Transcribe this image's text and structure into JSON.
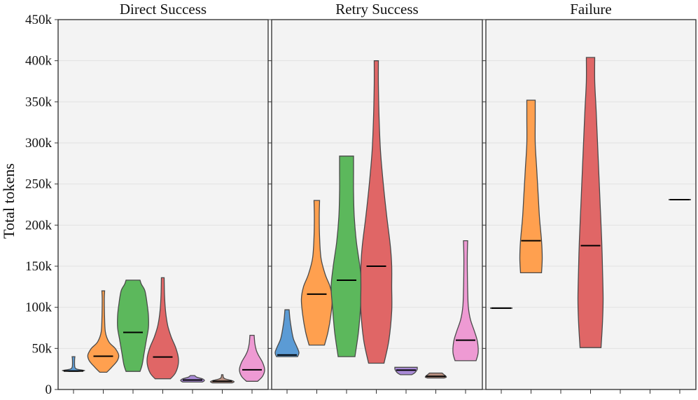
{
  "chart_data": {
    "type": "violin",
    "ylabel": "Total tokens",
    "ylim": [
      0,
      450000
    ],
    "yticks": [
      {
        "value": 0,
        "label": "0"
      },
      {
        "value": 50000,
        "label": "50k"
      },
      {
        "value": 100000,
        "label": "100k"
      },
      {
        "value": 150000,
        "label": "150k"
      },
      {
        "value": 200000,
        "label": "200k"
      },
      {
        "value": 250000,
        "label": "250k"
      },
      {
        "value": 300000,
        "label": "300k"
      },
      {
        "value": 350000,
        "label": "350k"
      },
      {
        "value": 400000,
        "label": "400k"
      },
      {
        "value": 450000,
        "label": "450k"
      }
    ],
    "grid": true,
    "series_colors": [
      "#5b9bd5",
      "#ffa04f",
      "#5cb85c",
      "#e06666",
      "#a98ad6",
      "#b88f80",
      "#ee9ad3"
    ],
    "panels": [
      {
        "title": "Direct Success",
        "violins": [
          {
            "series": 0,
            "min": 22000,
            "max": 40000,
            "median": 22500,
            "profile": [
              [
                22000,
                6
              ],
              [
                23000,
                16
              ],
              [
                24500,
                6
              ],
              [
                27000,
                2
              ],
              [
                35000,
                1.5
              ],
              [
                40000,
                2
              ]
            ]
          },
          {
            "series": 1,
            "min": 21000,
            "max": 120000,
            "median": 40500,
            "profile": [
              [
                21000,
                5
              ],
              [
                27000,
                12
              ],
              [
                35000,
                20
              ],
              [
                42000,
                22
              ],
              [
                50000,
                17
              ],
              [
                58000,
                8
              ],
              [
                70000,
                3
              ],
              [
                90000,
                1.8
              ],
              [
                110000,
                1.5
              ],
              [
                120000,
                2
              ]
            ]
          },
          {
            "series": 2,
            "min": 22000,
            "max": 133000,
            "median": 69500,
            "profile": [
              [
                22000,
                10
              ],
              [
                30000,
                13
              ],
              [
                45000,
                16
              ],
              [
                60000,
                19
              ],
              [
                75000,
                22
              ],
              [
                90000,
                22
              ],
              [
                105000,
                20
              ],
              [
                120000,
                17
              ],
              [
                128000,
                12
              ],
              [
                133000,
                10
              ]
            ]
          },
          {
            "series": 3,
            "min": 13000,
            "max": 136000,
            "median": 39500,
            "profile": [
              [
                13000,
                11
              ],
              [
                20000,
                18
              ],
              [
                30000,
                22
              ],
              [
                40000,
                22
              ],
              [
                52000,
                18
              ],
              [
                64000,
                12
              ],
              [
                78000,
                7
              ],
              [
                95000,
                4
              ],
              [
                115000,
                2.5
              ],
              [
                136000,
                2
              ]
            ]
          },
          {
            "series": 4,
            "min": 9000,
            "max": 17000,
            "median": 11500,
            "profile": [
              [
                9000,
                14
              ],
              [
                11000,
                17
              ],
              [
                13000,
                14
              ],
              [
                15000,
                6
              ],
              [
                17000,
                3
              ]
            ]
          },
          {
            "series": 5,
            "min": 8000,
            "max": 18000,
            "median": 10000,
            "profile": [
              [
                8000,
                14
              ],
              [
                9500,
                17
              ],
              [
                11000,
                13
              ],
              [
                13000,
                4
              ],
              [
                15000,
                1.5
              ],
              [
                18000,
                1
              ]
            ]
          },
          {
            "series": 6,
            "min": 10000,
            "max": 66000,
            "median": 24000,
            "profile": [
              [
                10000,
                8
              ],
              [
                16000,
                15
              ],
              [
                24000,
                18
              ],
              [
                33000,
                15
              ],
              [
                42000,
                9
              ],
              [
                48000,
                6
              ],
              [
                56000,
                4
              ],
              [
                66000,
                3
              ]
            ]
          }
        ]
      },
      {
        "title": "Retry Success",
        "violins": [
          {
            "series": 0,
            "min": 40000,
            "max": 97000,
            "median": 42000,
            "profile": [
              [
                40000,
                15
              ],
              [
                45000,
                17
              ],
              [
                52000,
                14
              ],
              [
                62000,
                9
              ],
              [
                75000,
                6
              ],
              [
                87000,
                4
              ],
              [
                97000,
                3
              ]
            ]
          },
          {
            "series": 1,
            "min": 54000,
            "max": 230000,
            "median": 116000,
            "profile": [
              [
                54000,
                11
              ],
              [
                70000,
                16
              ],
              [
                90000,
                20
              ],
              [
                110000,
                22
              ],
              [
                125000,
                19
              ],
              [
                140000,
                12
              ],
              [
                160000,
                6
              ],
              [
                185000,
                4
              ],
              [
                210000,
                3.5
              ],
              [
                230000,
                4
              ]
            ]
          },
          {
            "series": 2,
            "min": 40000,
            "max": 284000,
            "median": 133000,
            "profile": [
              [
                40000,
                12
              ],
              [
                70000,
                17
              ],
              [
                100000,
                20
              ],
              [
                125000,
                22
              ],
              [
                150000,
                19
              ],
              [
                180000,
                14
              ],
              [
                210000,
                11
              ],
              [
                240000,
                10
              ],
              [
                265000,
                10
              ],
              [
                284000,
                10
              ]
            ]
          },
          {
            "series": 3,
            "min": 32000,
            "max": 400000,
            "median": 150000,
            "profile": [
              [
                32000,
                11
              ],
              [
                60000,
                18
              ],
              [
                95000,
                22
              ],
              [
                125000,
                22
              ],
              [
                150000,
                22
              ],
              [
                175000,
                20
              ],
              [
                210000,
                15
              ],
              [
                250000,
                10
              ],
              [
                290000,
                6
              ],
              [
                330000,
                4
              ],
              [
                370000,
                3
              ],
              [
                400000,
                3
              ]
            ]
          },
          {
            "series": 4,
            "min": 18000,
            "max": 27000,
            "median": 23500,
            "profile": [
              [
                18000,
                8
              ],
              [
                20000,
                12
              ],
              [
                23000,
                15
              ],
              [
                25000,
                16
              ],
              [
                27000,
                16
              ]
            ]
          },
          {
            "series": 5,
            "min": 14000,
            "max": 20000,
            "median": 16000,
            "profile": [
              [
                14000,
                12
              ],
              [
                15000,
                15
              ],
              [
                16500,
                14
              ],
              [
                18500,
                11
              ],
              [
                20000,
                9
              ]
            ]
          },
          {
            "series": 6,
            "min": 35000,
            "max": 181000,
            "median": 60000,
            "profile": [
              [
                35000,
                15
              ],
              [
                45000,
                18
              ],
              [
                58000,
                17
              ],
              [
                70000,
                13
              ],
              [
                85000,
                7
              ],
              [
                100000,
                4
              ],
              [
                120000,
                3
              ],
              [
                145000,
                2.5
              ],
              [
                165000,
                2.5
              ],
              [
                181000,
                3
              ]
            ]
          }
        ]
      },
      {
        "title": "Failure",
        "violins": [
          {
            "series": 0,
            "min": 99000,
            "max": 99000,
            "median": 99000,
            "profile": [],
            "single_value": true
          },
          {
            "series": 1,
            "min": 142000,
            "max": 352000,
            "median": 181000,
            "profile": [
              [
                142000,
                15
              ],
              [
                160000,
                16
              ],
              [
                181000,
                15
              ],
              [
                210000,
                12
              ],
              [
                240000,
                10
              ],
              [
                270000,
                8
              ],
              [
                300000,
                6
              ],
              [
                330000,
                6
              ],
              [
                352000,
                6
              ]
            ]
          },
          {
            "series": 3,
            "min": 51000,
            "max": 404000,
            "median": 175000,
            "profile": [
              [
                51000,
                15
              ],
              [
                80000,
                17
              ],
              [
                110000,
                18
              ],
              [
                150000,
                17
              ],
              [
                180000,
                16
              ],
              [
                220000,
                14
              ],
              [
                260000,
                12
              ],
              [
                300000,
                10
              ],
              [
                340000,
                8
              ],
              [
                375000,
                6
              ],
              [
                404000,
                6
              ]
            ]
          },
          {
            "series": 6,
            "min": 231000,
            "max": 231000,
            "median": 231000,
            "profile": [],
            "single_value": true
          }
        ]
      }
    ]
  }
}
